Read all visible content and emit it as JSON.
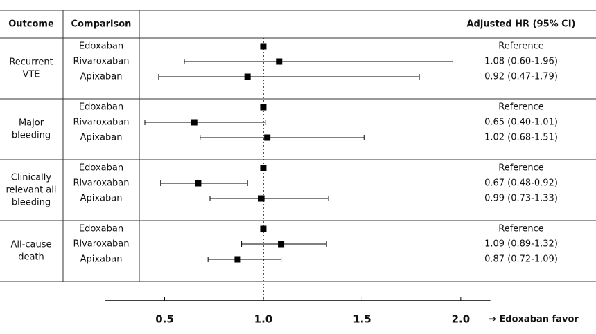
{
  "chart_data": {
    "type": "forest",
    "columns": [
      "Outcome",
      "Comparison",
      "Adjusted HR (95% CI)"
    ],
    "xlim": [
      0.2,
      2.15
    ],
    "xticks": [
      0.5,
      {
        "value": 1,
        "label": "1.0"
      },
      1.5,
      {
        "value": 2,
        "label": "2.0"
      }
    ],
    "reference": 1,
    "x_note": "→ Edoxaban favor",
    "color": "#000000",
    "groups": [
      {
        "outcome": [
          "Recurrent",
          "VTE"
        ],
        "rows": [
          {
            "comparison": "Edoxaban",
            "hr": 1,
            "label": "Reference"
          },
          {
            "comparison": "Rivaroxaban",
            "hr": 1.08,
            "lo": 0.6,
            "hi": 1.96,
            "label": "1.08 (0.60-1.96)"
          },
          {
            "comparison": "Apixaban",
            "hr": 0.92,
            "lo": 0.47,
            "hi": 1.79,
            "label": "0.92 (0.47-1.79)"
          }
        ]
      },
      {
        "outcome": [
          "Major",
          "bleeding"
        ],
        "rows": [
          {
            "comparison": "Edoxaban",
            "hr": 1,
            "label": "Reference"
          },
          {
            "comparison": "Rivaroxaban",
            "hr": 0.65,
            "lo": 0.4,
            "hi": 1.01,
            "label": "0.65 (0.40-1.01)"
          },
          {
            "comparison": "Apixaban",
            "hr": 1.02,
            "lo": 0.68,
            "hi": 1.51,
            "label": "1.02 (0.68-1.51)"
          }
        ]
      },
      {
        "outcome": [
          "Clinically",
          "relevant all",
          "bleeding"
        ],
        "rows": [
          {
            "comparison": "Edoxaban",
            "hr": 1,
            "label": "Reference"
          },
          {
            "comparison": "Rivaroxaban",
            "hr": 0.67,
            "lo": 0.48,
            "hi": 0.92,
            "label": "0.67 (0.48-0.92)"
          },
          {
            "comparison": "Apixaban",
            "hr": 0.99,
            "lo": 0.73,
            "hi": 1.33,
            "label": "0.99 (0.73-1.33)"
          }
        ]
      },
      {
        "outcome": [
          "All-cause",
          "death"
        ],
        "rows": [
          {
            "comparison": "Edoxaban",
            "hr": 1,
            "label": "Reference"
          },
          {
            "comparison": "Rivaroxaban",
            "hr": 1.09,
            "lo": 0.89,
            "hi": 1.32,
            "label": "1.09 (0.89-1.32)"
          },
          {
            "comparison": "Apixaban",
            "hr": 0.87,
            "lo": 0.72,
            "hi": 1.09,
            "label": "0.87 (0.72-1.09)"
          }
        ]
      }
    ]
  }
}
